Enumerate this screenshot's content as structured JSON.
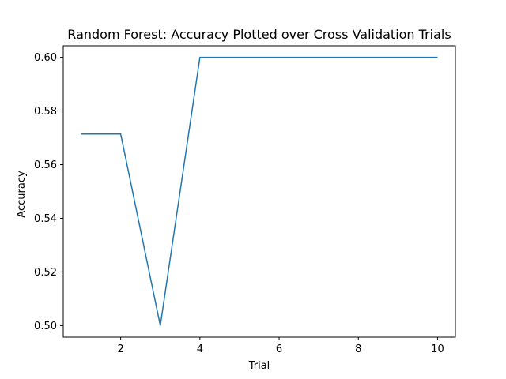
{
  "chart_data": {
    "type": "line",
    "title": "Random Forest: Accuracy Plotted over Cross Validation Trials",
    "xlabel": "Trial",
    "ylabel": "Accuracy",
    "xlim": [
      0.55,
      10.45
    ],
    "ylim": [
      0.4957,
      0.6043
    ],
    "x_ticks": [
      2,
      4,
      6,
      8,
      10
    ],
    "x_tick_labels": [
      "2",
      "4",
      "6",
      "8",
      "10"
    ],
    "y_ticks": [
      0.5,
      0.52,
      0.54,
      0.56,
      0.58,
      0.6
    ],
    "y_tick_labels": [
      "0.50",
      "0.52",
      "0.54",
      "0.56",
      "0.58",
      "0.60"
    ],
    "grid": false,
    "series": [
      {
        "color": "#1f77b4",
        "x": [
          1,
          2,
          3,
          4,
          5,
          6,
          7,
          8,
          9,
          10
        ],
        "y": [
          0.5714,
          0.5714,
          0.5,
          0.6,
          0.6,
          0.6,
          0.6,
          0.6,
          0.6,
          0.6
        ]
      }
    ]
  }
}
